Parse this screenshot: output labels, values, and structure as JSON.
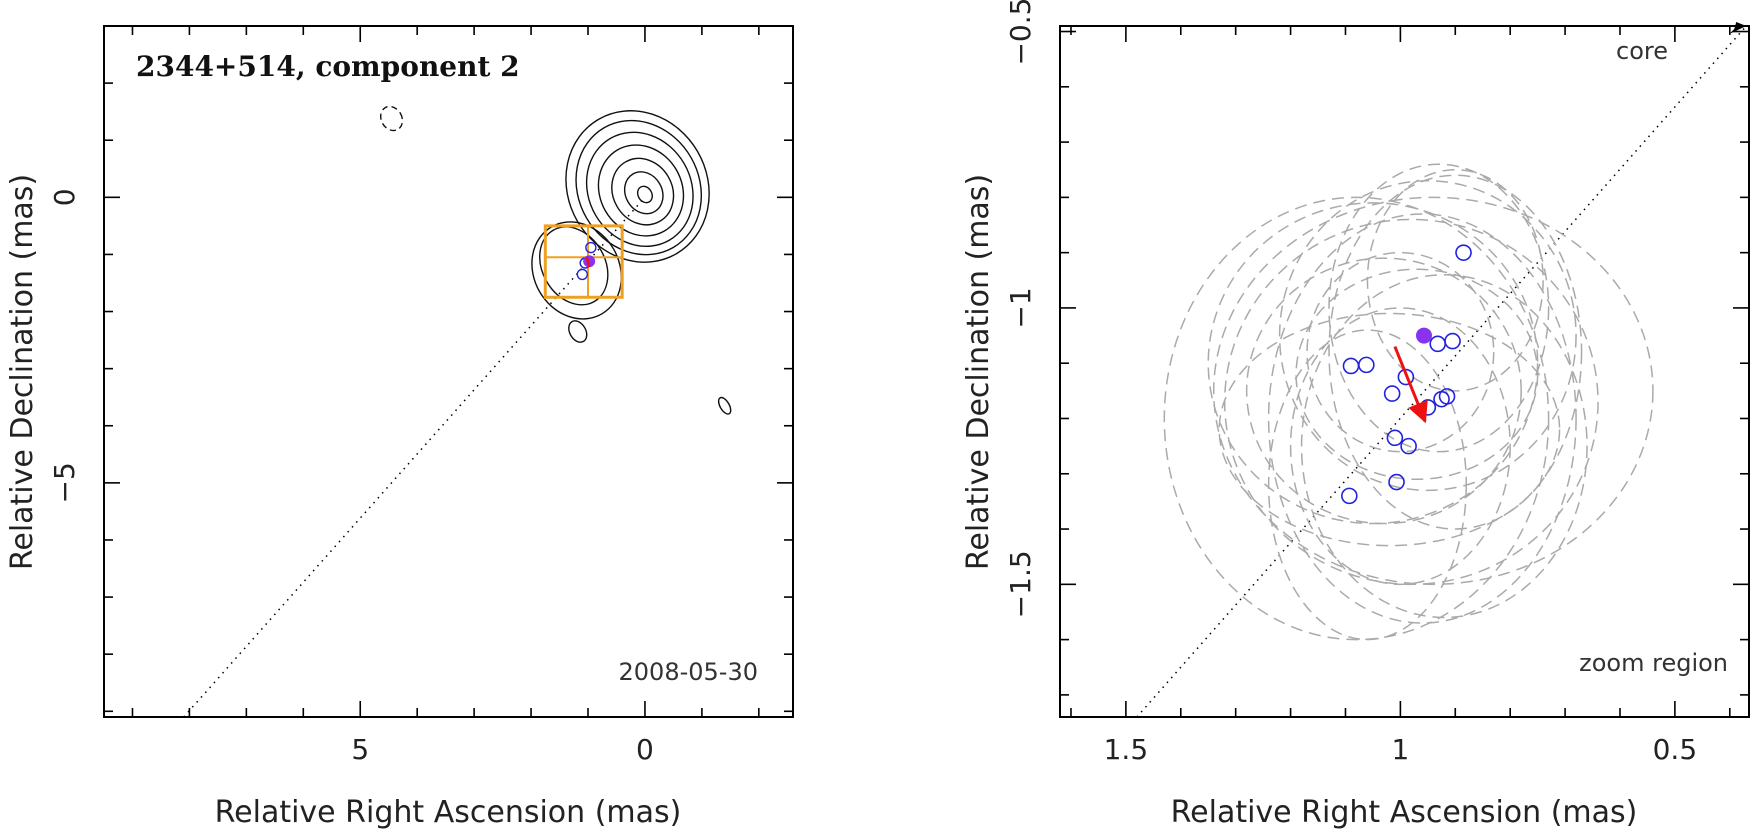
{
  "chart_data": [
    {
      "type": "scatter",
      "title": "2344+514, component 2",
      "date_label": "2008-05-30",
      "xlabel": "Relative Right Ascension (mas)",
      "ylabel": "Relative Declination (mas)",
      "xlim": [
        9.5,
        -2.6
      ],
      "ylim": [
        -9.1,
        3.0
      ],
      "x_ticks": [
        5,
        0
      ],
      "x_tick_labels": [
        "5",
        "0"
      ],
      "y_ticks": [
        0,
        -5
      ],
      "y_tick_labels": [
        "0",
        "−5"
      ],
      "contours": [
        {
          "x": 0.0,
          "y": 0.05,
          "rx": 0.12,
          "ry": 0.15
        },
        {
          "x": 0.02,
          "y": 0.08,
          "rx": 0.32,
          "ry": 0.38
        },
        {
          "x": 0.04,
          "y": 0.1,
          "rx": 0.52,
          "ry": 0.6
        },
        {
          "x": 0.07,
          "y": 0.12,
          "rx": 0.72,
          "ry": 0.82
        },
        {
          "x": 0.09,
          "y": 0.14,
          "rx": 0.9,
          "ry": 1.03
        },
        {
          "x": 0.11,
          "y": 0.17,
          "rx": 1.06,
          "ry": 1.21
        },
        {
          "x": 0.13,
          "y": 0.19,
          "rx": 1.22,
          "ry": 1.36
        },
        {
          "x": 1.25,
          "y": -1.2,
          "rx": 0.55,
          "ry": 0.72
        },
        {
          "x": 1.2,
          "y": -1.28,
          "rx": 0.75,
          "ry": 0.88
        },
        {
          "x": 4.45,
          "y": 1.38,
          "rx": 0.18,
          "ry": 0.22
        },
        {
          "x": 1.18,
          "y": -2.35,
          "rx": 0.14,
          "ry": 0.2
        },
        {
          "x": -1.4,
          "y": -3.65,
          "rx": 0.08,
          "ry": 0.16
        }
      ],
      "zoom_box": {
        "x_range": [
          1.75,
          0.4
        ],
        "y_range": [
          -1.75,
          -0.5
        ],
        "x_mid": 1.0,
        "y_mid": -1.05
      },
      "points": [
        {
          "x": 1.05,
          "y": -1.15
        },
        {
          "x": 1.1,
          "y": -1.35
        },
        {
          "x": 0.95,
          "y": -0.88
        }
      ],
      "filled_point": {
        "x": 0.98,
        "y": -1.12
      },
      "core_line": {
        "x": [
          8.1,
          0.0
        ],
        "y": [
          -9.1,
          0.0
        ]
      },
      "colors": {
        "contour": "#111111",
        "zoom_box": "#f0a020",
        "points": "#2222dd",
        "filled": "#8833ee",
        "arrow": "#ee1111"
      }
    },
    {
      "type": "scatter",
      "xlabel": "Relative Right Ascension (mas)",
      "ylabel": "Relative Declination (mas)",
      "xlim": [
        1.62,
        0.365
      ],
      "ylim": [
        -1.74,
        -0.49
      ],
      "x_ticks": [
        1.5,
        1,
        0.5
      ],
      "x_tick_labels": [
        "1.5",
        "1",
        "0.5"
      ],
      "y_ticks": [
        -0.5,
        -1,
        -1.5
      ],
      "y_tick_labels": [
        "−0.5",
        "−1",
        "−1.5"
      ],
      "core_label": "core",
      "zoom_label": "zoom region",
      "points": [
        {
          "x": 0.885,
          "y": -0.9
        },
        {
          "x": 0.932,
          "y": -1.065
        },
        {
          "x": 0.905,
          "y": -1.06
        },
        {
          "x": 1.09,
          "y": -1.105
        },
        {
          "x": 1.062,
          "y": -1.103
        },
        {
          "x": 0.99,
          "y": -1.125
        },
        {
          "x": 1.015,
          "y": -1.155
        },
        {
          "x": 0.95,
          "y": -1.18
        },
        {
          "x": 0.925,
          "y": -1.165
        },
        {
          "x": 0.915,
          "y": -1.16
        },
        {
          "x": 1.01,
          "y": -1.235
        },
        {
          "x": 0.985,
          "y": -1.25
        },
        {
          "x": 1.007,
          "y": -1.315
        },
        {
          "x": 1.093,
          "y": -1.34
        }
      ],
      "filled_point": {
        "x": 0.957,
        "y": -1.05
      },
      "arrow": {
        "x0": 1.01,
        "y0": -1.07,
        "x1": 0.955,
        "y1": -1.205
      },
      "core_line": {
        "x": [
          1.48,
          0.37
        ],
        "y": [
          -1.74,
          -0.49
        ]
      },
      "error_ellipses": [
        {
          "x": 0.93,
          "y": -1.0,
          "rx": 0.2,
          "ry": 0.26
        },
        {
          "x": 0.95,
          "y": -1.05,
          "rx": 0.27,
          "ry": 0.28
        },
        {
          "x": 0.9,
          "y": -1.08,
          "rx": 0.23,
          "ry": 0.32
        },
        {
          "x": 1.05,
          "y": -1.1,
          "rx": 0.3,
          "ry": 0.29
        },
        {
          "x": 1.03,
          "y": -1.15,
          "rx": 0.25,
          "ry": 0.24
        },
        {
          "x": 0.98,
          "y": -1.17,
          "rx": 0.34,
          "ry": 0.33
        },
        {
          "x": 0.96,
          "y": -1.2,
          "rx": 0.28,
          "ry": 0.37
        },
        {
          "x": 1.08,
          "y": -1.2,
          "rx": 0.35,
          "ry": 0.4
        },
        {
          "x": 1.0,
          "y": -1.25,
          "rx": 0.2,
          "ry": 0.25
        },
        {
          "x": 0.92,
          "y": -1.25,
          "rx": 0.26,
          "ry": 0.31
        },
        {
          "x": 1.06,
          "y": -1.32,
          "rx": 0.18,
          "ry": 0.28
        },
        {
          "x": 0.94,
          "y": -1.15,
          "rx": 0.4,
          "ry": 0.35
        },
        {
          "x": 1.0,
          "y": -1.08,
          "rx": 0.17,
          "ry": 0.18
        },
        {
          "x": 0.9,
          "y": -0.95,
          "rx": 0.16,
          "ry": 0.2
        },
        {
          "x": 1.02,
          "y": -1.22,
          "rx": 0.31,
          "ry": 0.21
        },
        {
          "x": 0.97,
          "y": -1.12,
          "rx": 0.22,
          "ry": 0.19
        }
      ],
      "colors": {
        "points": "#2222dd",
        "filled": "#8833ee",
        "arrow": "#ee1111",
        "ellipse": "#aaaaaa"
      }
    }
  ]
}
